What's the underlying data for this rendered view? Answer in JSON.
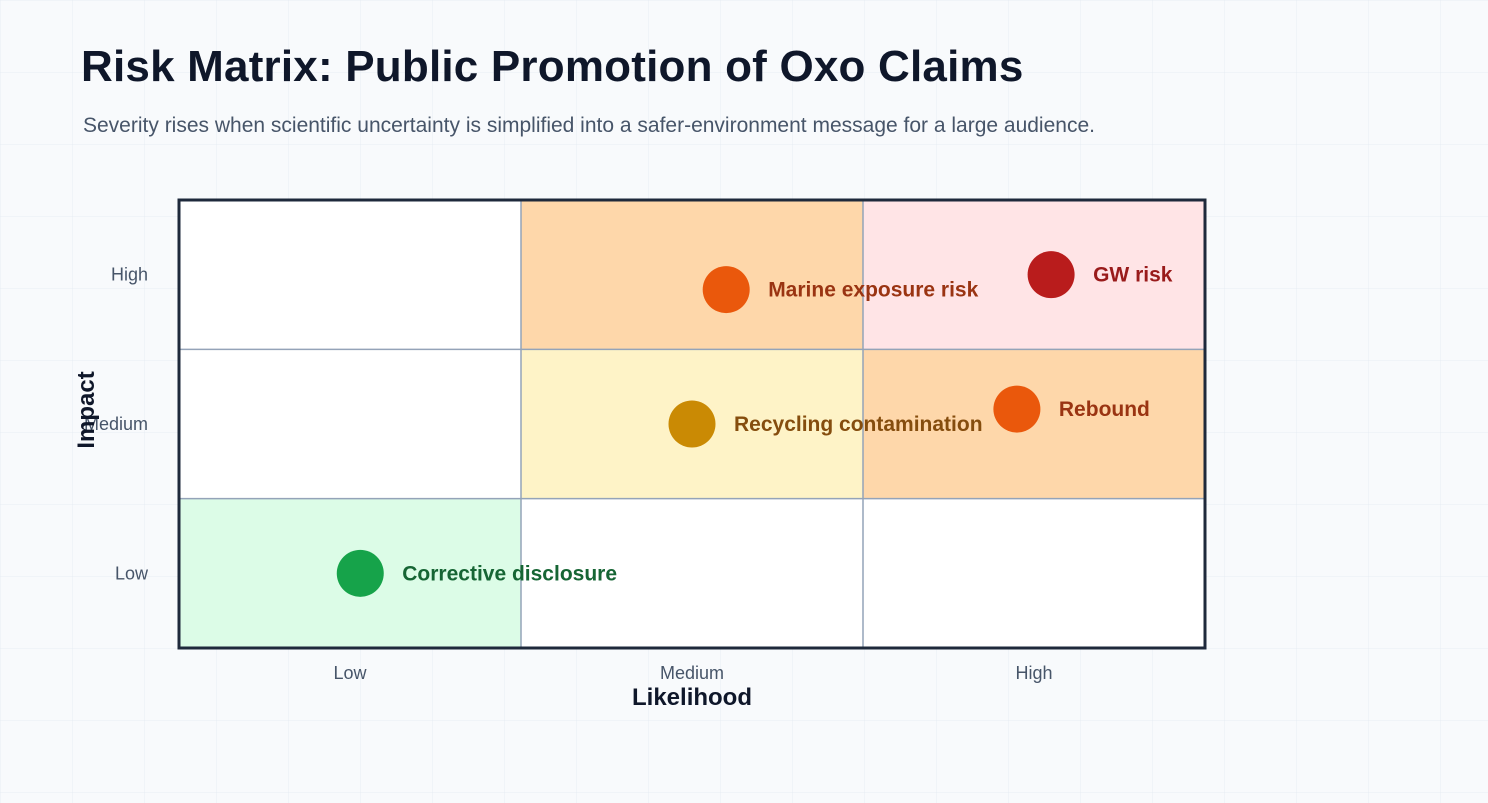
{
  "title": "Risk Matrix: Public Promotion of Oxo Claims",
  "subtitle": "Severity rises when scientific uncertainty is simplified into a safer-environment message for a large audience.",
  "chart_data": {
    "type": "scatter",
    "title": "Risk Matrix: Public Promotion of Oxo Claims",
    "xlabel": "Likelihood",
    "ylabel": "Impact",
    "x_categories": [
      "Low",
      "Medium",
      "High"
    ],
    "y_categories": [
      "Low",
      "Medium",
      "High"
    ],
    "xlim": [
      0,
      3
    ],
    "ylim": [
      0,
      3
    ],
    "grid": true,
    "cell_colors": [
      [
        "#dcfce7",
        "#ffffff",
        "#ffffff"
      ],
      [
        "#ffffff",
        "#fef3c7",
        "#fed7aa"
      ],
      [
        "#ffffff",
        "#fed7aa",
        "#ffe4e6"
      ]
    ],
    "points": [
      {
        "label": "Marine exposure risk",
        "x": 1.6,
        "y": 2.4,
        "color": "#ea580c",
        "label_color": "#9a3412"
      },
      {
        "label": "GW risk",
        "x": 2.55,
        "y": 2.5,
        "color": "#b91c1c",
        "label_color": "#991b1b"
      },
      {
        "label": "Recycling contamination",
        "x": 1.5,
        "y": 1.5,
        "color": "#ca8a04",
        "label_color": "#854d0e"
      },
      {
        "label": "Rebound",
        "x": 2.45,
        "y": 1.6,
        "color": "#ea580c",
        "label_color": "#9a3412"
      },
      {
        "label": "Corrective disclosure",
        "x": 0.53,
        "y": 0.5,
        "color": "#16a34a",
        "label_color": "#166534"
      }
    ]
  }
}
